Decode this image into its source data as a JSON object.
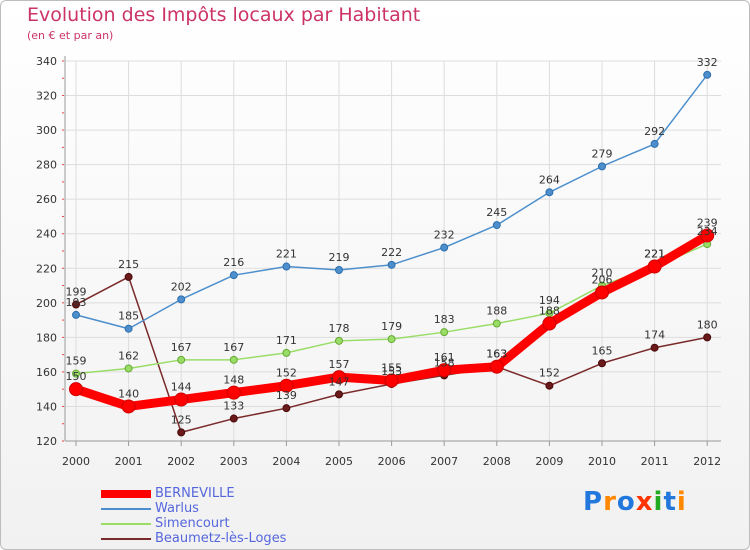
{
  "chart_data": {
    "type": "line",
    "title": "Evolution des Impôts locaux par Habitant",
    "subtitle": "(en € et par an)",
    "x": [
      "2000",
      "2001",
      "2002",
      "2003",
      "2004",
      "2005",
      "2006",
      "2007",
      "2008",
      "2009",
      "2010",
      "2011",
      "2012"
    ],
    "ylim": [
      120,
      340
    ],
    "yticks": [
      120,
      140,
      160,
      180,
      200,
      220,
      240,
      260,
      280,
      300,
      320,
      340
    ],
    "grid": true,
    "legend_placement": "bottom-left",
    "series": [
      {
        "name": "BERNEVILLE",
        "color": "#ff0000",
        "values": [
          150,
          140,
          144,
          148,
          152,
          157,
          155,
          161,
          163,
          188,
          206,
          221,
          239
        ]
      },
      {
        "name": "Warlus",
        "color": "#4d8fcc",
        "values": [
          193,
          185,
          202,
          216,
          221,
          219,
          222,
          232,
          245,
          264,
          279,
          292,
          332
        ]
      },
      {
        "name": "Simencourt",
        "color": "#99dd66",
        "values": [
          159,
          162,
          167,
          167,
          171,
          178,
          179,
          183,
          188,
          194,
          210,
          221,
          234
        ]
      },
      {
        "name": "Beaumetz-lès-Loges",
        "color": "#7a2a2a",
        "values": [
          199,
          215,
          125,
          133,
          139,
          147,
          153,
          158,
          163,
          152,
          165,
          174,
          180
        ]
      }
    ]
  },
  "logo": {
    "letters": [
      "P",
      "r",
      "o",
      "x",
      "i",
      "t",
      "i"
    ],
    "colors": [
      "#2277dd",
      "#ff8800",
      "#2277dd",
      "#ff3300",
      "#22aa22",
      "#2277dd",
      "#ff8800"
    ]
  }
}
